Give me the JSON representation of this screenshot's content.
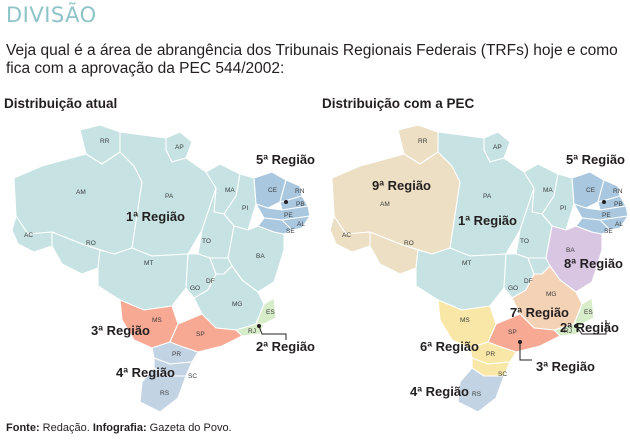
{
  "header": {
    "title": "DIVISÃO",
    "subtitle": "Veja qual é a área de abrangência dos Tribunais Regionais Federais (TRFs) hoje e como fica com a aprovação da PEC 544/2002:"
  },
  "colors": {
    "teal": "#c6e2e2",
    "blue": "#a9c8e0",
    "salmon": "#f7a993",
    "lightgreen": "#d7ecc9",
    "slate": "#c2d3e3",
    "tan": "#ecdfc3",
    "lilac": "#d9c6e2",
    "peach": "#f4d2b5",
    "yellow": "#f8e7a6",
    "title": "#8ec3c8"
  },
  "maps": {
    "current": {
      "title": "Distribuição atual",
      "regions": {
        "r1": "1ª Região",
        "r2": "2ª Região",
        "r3": "3ª Região",
        "r4": "4ª Região",
        "r5": "5ª Região"
      }
    },
    "pec": {
      "title": "Distribuição com a PEC",
      "regions": {
        "r1": "1ª Região",
        "r2": "2ª Região",
        "r3": "3ª Região",
        "r4": "4ª Região",
        "r5": "5ª Região",
        "r6": "6ª Região",
        "r7": "7ª Região",
        "r8": "8ª Região",
        "r9": "9ª Região"
      }
    },
    "states": {
      "RR": "RR",
      "AP": "AP",
      "AM": "AM",
      "PA": "PA",
      "MA": "MA",
      "CE": "CE",
      "RN": "RN",
      "PB": "PB",
      "PE": "PE",
      "PI": "PI",
      "AL": "AL",
      "SE": "SE",
      "AC": "AC",
      "RO": "RO",
      "TO": "TO",
      "BA": "BA",
      "MT": "MT",
      "GO": "GO",
      "DF": "DF",
      "MG": "MG",
      "ES": "ES",
      "MS": "MS",
      "SP": "SP",
      "RJ": "RJ",
      "PR": "PR",
      "SC": "SC",
      "RS": "RS"
    }
  },
  "footer": {
    "source_label": "Fonte:",
    "source_value": "Redação.",
    "infographic_label": "Infografia:",
    "infographic_value": "Gazeta do Povo."
  }
}
